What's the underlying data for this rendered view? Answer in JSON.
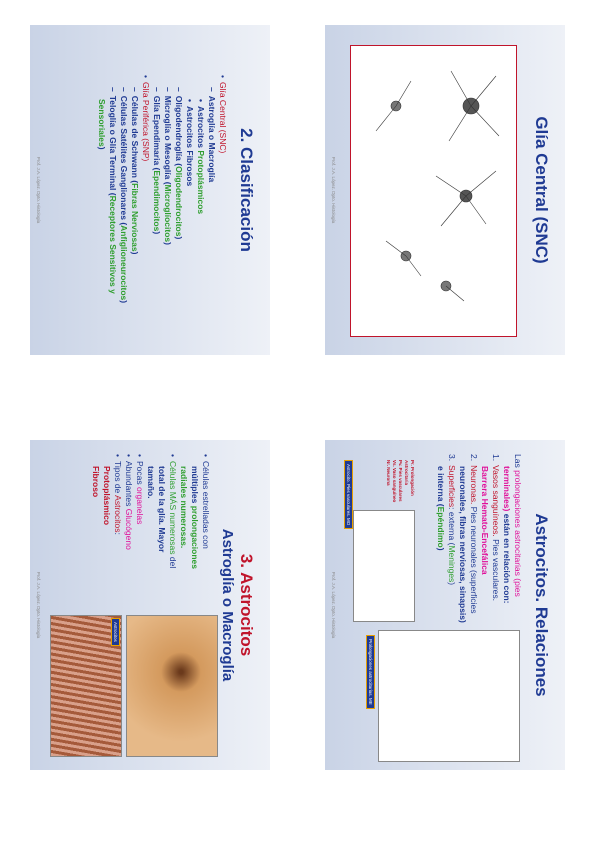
{
  "slides": [
    {
      "title": "2. Clasificación",
      "title_color": "#1f3a93",
      "lines": [
        {
          "indent": 0,
          "bullet": "•",
          "parts": [
            {
              "text": "Glía Central ",
              "color": "#c0142b"
            },
            {
              "text": "(SNC)",
              "color": "#c0142b"
            }
          ]
        },
        {
          "indent": 1,
          "bullet": "–",
          "parts": [
            {
              "text": "Astroglía o Macroglía",
              "color": "#1f3a93"
            }
          ]
        },
        {
          "indent": 2,
          "bullet": "•",
          "parts": [
            {
              "text": "Astrocitos ",
              "color": "#1f3a93"
            },
            {
              "text": "Protoplásmicos",
              "color": "#2e9e2e"
            }
          ]
        },
        {
          "indent": 2,
          "bullet": "•",
          "parts": [
            {
              "text": "Astrocitos Fibrosos",
              "color": "#1f3a93"
            }
          ]
        },
        {
          "indent": 1,
          "bullet": "–",
          "parts": [
            {
              "text": "Oligodendroglía (",
              "color": "#1f3a93"
            },
            {
              "text": "Oligodendrocitos",
              "color": "#2e9e2e"
            },
            {
              "text": ")",
              "color": "#1f3a93"
            }
          ]
        },
        {
          "indent": 1,
          "bullet": "–",
          "parts": [
            {
              "text": "Microglía o Mesoglía (",
              "color": "#1f3a93"
            },
            {
              "text": "Microglíocitos",
              "color": "#2e9e2e"
            },
            {
              "text": ")",
              "color": "#1f3a93"
            }
          ]
        },
        {
          "indent": 1,
          "bullet": "–",
          "parts": [
            {
              "text": "Glía Ependimaria (",
              "color": "#1f3a93"
            },
            {
              "text": "Ependimocitos",
              "color": "#2e9e2e"
            },
            {
              "text": ")",
              "color": "#1f3a93"
            }
          ]
        },
        {
          "indent": 0,
          "bullet": "•",
          "parts": [
            {
              "text": "Glía Periférica (SNP)",
              "color": "#c0142b"
            }
          ]
        },
        {
          "indent": 1,
          "bullet": "–",
          "parts": [
            {
              "text": "Células de Schwann (",
              "color": "#1f3a93"
            },
            {
              "text": "Fibras Nerviosas",
              "color": "#2e9e2e"
            },
            {
              "text": ")",
              "color": "#1f3a93"
            }
          ]
        },
        {
          "indent": 1,
          "bullet": "–",
          "parts": [
            {
              "text": "Células Satélites Ganglionares (",
              "color": "#1f3a93"
            },
            {
              "text": "Anfiglioneurocitos",
              "color": "#2e9e2e"
            },
            {
              "text": ")",
              "color": "#1f3a93"
            }
          ]
        },
        {
          "indent": 1,
          "bullet": "–",
          "parts": [
            {
              "text": "Teloglía o Glía Terminal (",
              "color": "#1f3a93"
            },
            {
              "text": "Receptores Sensitivos y",
              "color": "#2e9e2e"
            }
          ]
        },
        {
          "indent": 2,
          "bullet": "",
          "parts": [
            {
              "text": "Sensoriales",
              "color": "#2e9e2e"
            },
            {
              "text": ")",
              "color": "#1f3a93"
            }
          ]
        }
      ],
      "footer": "Prof. J.A. López. Dpto. Histología"
    },
    {
      "title": "3. Astrocitos",
      "title_color": "#c0142b",
      "subtitle": "Astroglía o Macroglía",
      "lines": [
        {
          "indent": 0,
          "bullet": "•",
          "parts": [
            {
              "text": "Células estrelladas con",
              "color": "#1f3a93"
            }
          ]
        },
        {
          "indent": 1,
          "bullet": "",
          "parts": [
            {
              "text": "múltiples ",
              "color": "#1f3a93"
            },
            {
              "text": "prolongaciones",
              "color": "#2e9e2e"
            }
          ]
        },
        {
          "indent": 1,
          "bullet": "",
          "parts": [
            {
              "text": "radiales numerosas.",
              "color": "#2e9e2e"
            }
          ]
        },
        {
          "indent": 0,
          "bullet": "•",
          "parts": [
            {
              "text": "Células MÁS numerosas",
              "color": "#2e9e2e"
            },
            {
              "text": " del",
              "color": "#1f3a93"
            }
          ]
        },
        {
          "indent": 1,
          "bullet": "",
          "parts": [
            {
              "text": "total de la glía. Mayor",
              "color": "#1f3a93"
            }
          ]
        },
        {
          "indent": 1,
          "bullet": "",
          "parts": [
            {
              "text": "tamaño.",
              "color": "#1f3a93"
            }
          ]
        },
        {
          "indent": 0,
          "bullet": "•",
          "parts": [
            {
              "text": "Pocas ",
              "color": "#1f3a93"
            },
            {
              "text": "organelas",
              "color": "#e0109a"
            }
          ]
        },
        {
          "indent": 0,
          "bullet": "•",
          "parts": [
            {
              "text": "Abundantes ",
              "color": "#1f3a93"
            },
            {
              "text": "Glucógeno",
              "color": "#e0109a"
            }
          ]
        },
        {
          "indent": 0,
          "bullet": "•",
          "parts": [
            {
              "text": "Tipos de ",
              "color": "#1f3a93"
            },
            {
              "text": "Astrocitos",
              "color": "#c0142b"
            },
            {
              "text": ":",
              "color": "#1f3a93"
            }
          ]
        },
        {
          "indent": 1,
          "bullet": "",
          "parts": [
            {
              "text": "Protoplásmico",
              "color": "#c0142b"
            }
          ]
        },
        {
          "indent": 1,
          "bullet": "",
          "parts": [
            {
              "text": "Fibroso",
              "color": "#c0142b"
            }
          ]
        }
      ],
      "image_label": "Astrocitos",
      "footer": "Prof. J.A. López. Dpto. Histología"
    },
    {
      "title": "Glía Central (SNC)",
      "title_color": "#1f3a93",
      "footer": "Prof. J.A. López. Dpto. Histología"
    },
    {
      "title": "Astrocitos. Relaciones",
      "title_color": "#1f3a93",
      "lines": [
        {
          "indent": 0,
          "bullet": "",
          "parts": [
            {
              "text": "Las ",
              "color": "#1f3a93"
            },
            {
              "text": "prolongaciones astrocitarias (pies",
              "color": "#e0109a"
            }
          ]
        },
        {
          "indent": 1,
          "bullet": "",
          "parts": [
            {
              "text": "terminales)",
              "color": "#e0109a"
            },
            {
              "text": " están en relación con:",
              "color": "#1f3a93"
            }
          ]
        },
        {
          "indent": 0,
          "bullet": "1.",
          "parts": [
            {
              "text": "Vasos sanguíneos.",
              "color": "#c0142b"
            },
            {
              "text": " Pies vasculares.",
              "color": "#1f3a93"
            }
          ]
        },
        {
          "indent": 1,
          "bullet": "",
          "parts": [
            {
              "text": "Barrera Hemato-Encefálica",
              "color": "#e0109a"
            }
          ]
        },
        {
          "indent": 0,
          "bullet": "2.",
          "parts": [
            {
              "text": "Neuronas.",
              "color": "#c0142b"
            },
            {
              "text": " Pies neuronales (superficies",
              "color": "#1f3a93"
            }
          ]
        },
        {
          "indent": 1,
          "bullet": "",
          "parts": [
            {
              "text": "neuronales, fibras nerviosas, sinapsis)",
              "color": "#1f3a93"
            }
          ]
        },
        {
          "indent": 0,
          "bullet": "3.",
          "parts": [
            {
              "text": "Superficies",
              "color": "#c0142b"
            },
            {
              "text": ": externa (",
              "color": "#1f3a93"
            },
            {
              "text": "Meninges",
              "color": "#2e9e2e"
            },
            {
              "text": ")",
              "color": "#1f3a93"
            }
          ]
        },
        {
          "indent": 1,
          "bullet": "",
          "parts": [
            {
              "text": "e interna (",
              "color": "#1f3a93"
            },
            {
              "text": "Epéndimo",
              "color": "#2e9e2e"
            },
            {
              "text": ")",
              "color": "#1f3a93"
            }
          ]
        }
      ],
      "legend": [
        "Pr. Prolongación",
        "Astrocitaria",
        "Pv. Pies vasculares",
        "Vs. Vaso sanguíneo",
        "Nr. Neurona"
      ],
      "caption_left": "Astrocito. Pies vasculares. MO",
      "caption_right": "Prolongaciones astrocitarias. ME",
      "footer": "Prof. J.A. López. Dpto. Histología"
    }
  ]
}
